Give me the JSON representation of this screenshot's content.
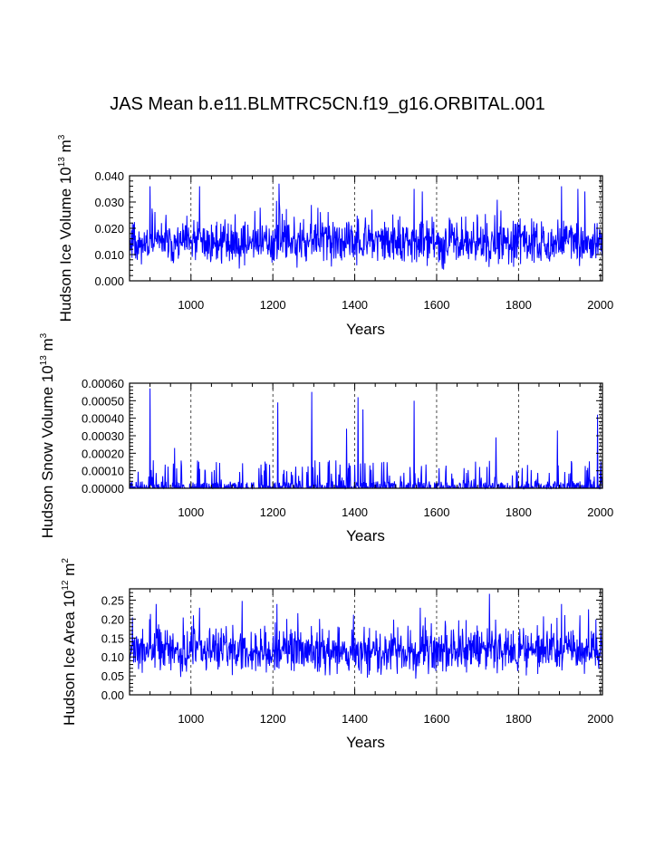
{
  "title": "JAS Mean b.e11.BLMTRC5CN.f19_g16.ORBITAL.001",
  "colors": {
    "line": "#0000ff",
    "axis": "#000000",
    "grid": "#000000"
  },
  "chart_data": [
    {
      "type": "line",
      "id": "ice-volume",
      "title": "",
      "xlabel": "Years",
      "ylabel": {
        "text": "Hudson Ice Volume 10",
        "sup": "13",
        "unit": " m",
        "unit_sup": "3"
      },
      "xlim": [
        850,
        2005
      ],
      "ylim": [
        0.0,
        0.04
      ],
      "x_ticks": [
        1000,
        1200,
        1400,
        1600,
        1800,
        2000
      ],
      "y_ticks": [
        0.0,
        0.01,
        0.02,
        0.03,
        0.04
      ],
      "y_tick_labels": [
        "0.000",
        "0.010",
        "0.020",
        "0.030",
        "0.040"
      ],
      "y_minor_step": 0.002,
      "x_minor_step": 50,
      "gridlines_x": [
        1000,
        1200,
        1400,
        1600,
        1800,
        2000
      ],
      "series": [
        {
          "name": "Hudson Ice Volume",
          "x_start": 850,
          "x_end": 2005,
          "baseline": 0.0145,
          "noise": 0.0055,
          "min": 0.003,
          "spikes": [
            [
              900,
              0.036
            ],
            [
              1021,
              0.036
            ],
            [
              1215,
              0.037
            ],
            [
              1545,
              0.035
            ],
            [
              1565,
              0.034
            ],
            [
              1905,
              0.036
            ],
            [
              1945,
              0.035
            ],
            [
              1962,
              0.034
            ]
          ],
          "seed": 11
        }
      ]
    },
    {
      "type": "line",
      "id": "snow-volume",
      "title": "",
      "xlabel": "Years",
      "ylabel": {
        "text": "Hudson Snow Volume 10",
        "sup": "13",
        "unit": " m",
        "unit_sup": "3"
      },
      "xlim": [
        850,
        2005
      ],
      "ylim": [
        0.0,
        0.0006
      ],
      "x_ticks": [
        1000,
        1200,
        1400,
        1600,
        1800,
        2000
      ],
      "y_ticks": [
        0.0,
        0.0001,
        0.0002,
        0.0003,
        0.0004,
        0.0005,
        0.0006
      ],
      "y_tick_labels": [
        "0.00000",
        "0.00010",
        "0.00020",
        "0.00030",
        "0.00040",
        "0.00050",
        "0.00060"
      ],
      "y_minor_step": 2e-05,
      "x_minor_step": 50,
      "gridlines_x": [
        1000,
        1200,
        1400,
        1600,
        1800,
        2000
      ],
      "series": [
        {
          "name": "Hudson Snow Volume",
          "x_start": 850,
          "x_end": 2005,
          "baseline": 0.0,
          "noise": 0.0,
          "min": 0.0,
          "spikes": [
            [
              900,
              0.00057
            ],
            [
              960,
              0.00023
            ],
            [
              1212,
              0.00049
            ],
            [
              1295,
              0.00055
            ],
            [
              1380,
              0.00034
            ],
            [
              1408,
              0.00052
            ],
            [
              1420,
              0.00045
            ],
            [
              1545,
              0.0005
            ],
            [
              1745,
              0.00029
            ],
            [
              1895,
              0.00033
            ],
            [
              1993,
              0.00042
            ]
          ],
          "sparse": true,
          "seed": 23
        }
      ]
    },
    {
      "type": "line",
      "id": "ice-area",
      "title": "",
      "xlabel": "Years",
      "ylabel": {
        "text": "Hudson Ice Area 10",
        "sup": "12",
        "unit": " m",
        "unit_sup": "2"
      },
      "xlim": [
        850,
        2005
      ],
      "ylim": [
        0.0,
        0.28
      ],
      "x_ticks": [
        1000,
        1200,
        1400,
        1600,
        1800,
        2000
      ],
      "y_ticks": [
        0.0,
        0.05,
        0.1,
        0.15,
        0.2,
        0.25
      ],
      "y_tick_labels": [
        "0.00",
        "0.05",
        "0.10",
        "0.15",
        "0.20",
        "0.25"
      ],
      "y_minor_step": 0.01,
      "x_minor_step": 50,
      "gridlines_x": [
        1000,
        1200,
        1400,
        1600,
        1800,
        2000
      ],
      "series": [
        {
          "name": "Hudson Ice Area",
          "x_start": 850,
          "x_end": 2005,
          "baseline": 0.115,
          "noise": 0.04,
          "min": 0.02,
          "spikes": [
            [
              915,
              0.24
            ],
            [
              1021,
              0.23
            ],
            [
              1210,
              0.24
            ],
            [
              1560,
              0.23
            ],
            [
              1905,
              0.24
            ],
            [
              1950,
              0.21
            ]
          ],
          "seed": 37
        }
      ]
    }
  ]
}
